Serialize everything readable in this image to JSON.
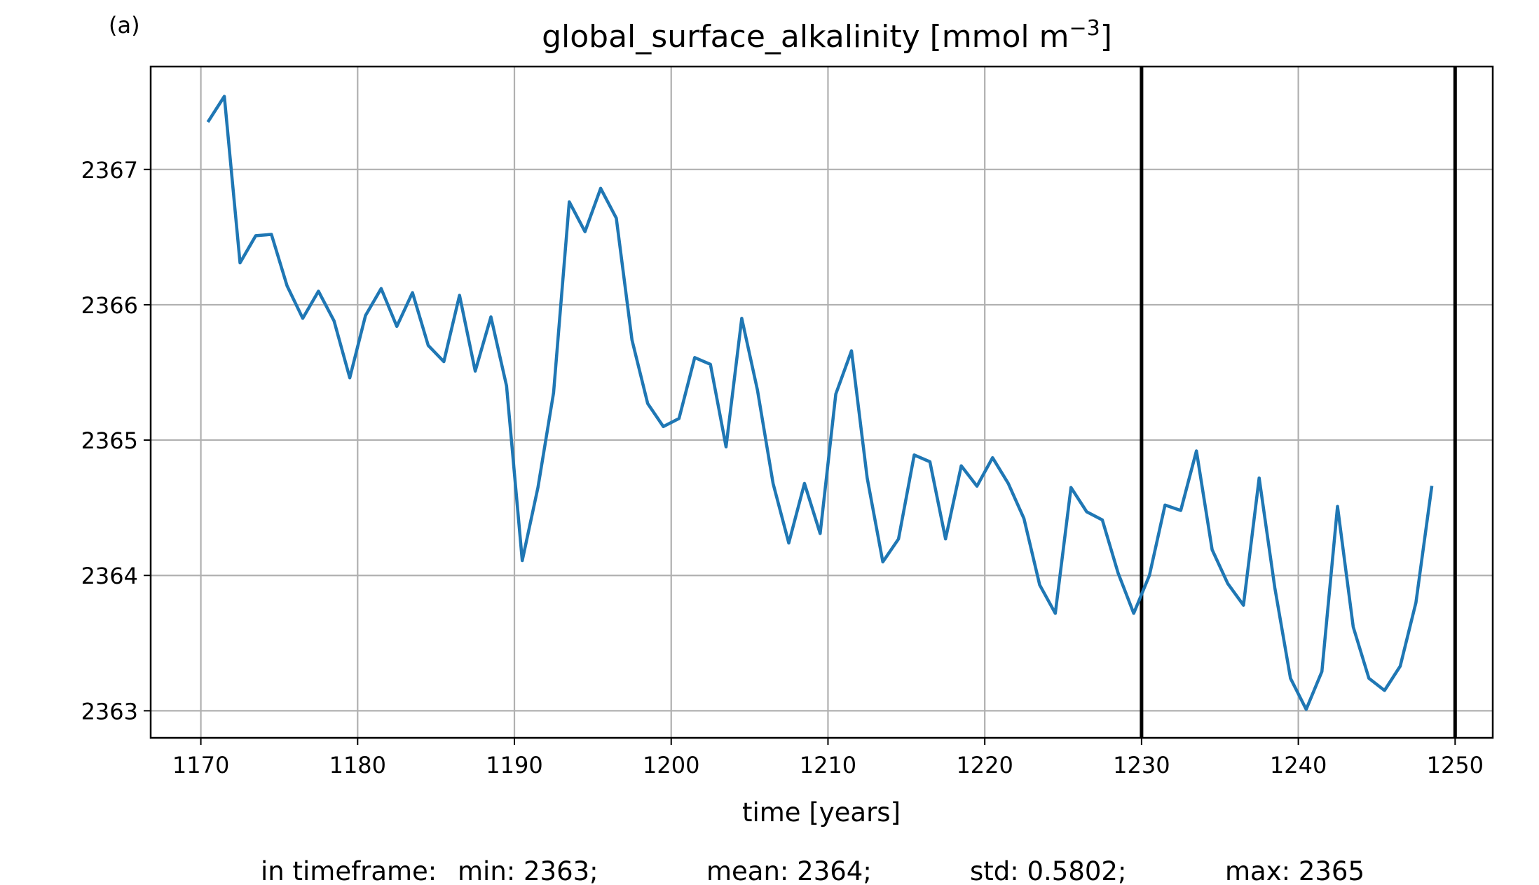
{
  "panel_label": "(a)",
  "chart_data": {
    "type": "line",
    "title": "global_surface_alkalinity [mmol m",
    "title_sup": "−3",
    "title_end": "]",
    "xlabel": "time [years]",
    "ylabel": "",
    "xlim": [
      1166.8,
      1252.4
    ],
    "ylim": [
      2362.8,
      2367.76
    ],
    "xticks": [
      1170,
      1180,
      1190,
      1200,
      1210,
      1220,
      1230,
      1240,
      1250
    ],
    "yticks": [
      2363,
      2364,
      2365,
      2366,
      2367
    ],
    "grid": true,
    "vlines": [
      1230,
      1250
    ],
    "line_color": "#1f77b4",
    "series": [
      {
        "x": [
          1170.5,
          1171.5,
          1172.5,
          1173.5,
          1174.5,
          1175.5,
          1176.5,
          1177.5,
          1178.5,
          1179.5,
          1180.5,
          1181.5,
          1182.5,
          1183.5,
          1184.5,
          1185.5,
          1186.5,
          1187.5,
          1188.5,
          1189.5,
          1190.5,
          1191.5,
          1192.5,
          1193.5,
          1194.5,
          1195.5,
          1196.5,
          1197.5,
          1198.5,
          1199.5,
          1200.5,
          1201.5,
          1202.5,
          1203.5,
          1204.5,
          1205.5,
          1206.5,
          1207.5,
          1208.5,
          1209.5,
          1210.5,
          1211.5,
          1212.5,
          1213.5,
          1214.5,
          1215.5,
          1216.5,
          1217.5,
          1218.5,
          1219.5,
          1220.5,
          1221.5,
          1222.5,
          1223.5,
          1224.5,
          1225.5,
          1226.5,
          1227.5,
          1228.5,
          1229.5,
          1230.5,
          1231.5,
          1232.5,
          1233.5,
          1234.5,
          1235.5,
          1236.5,
          1237.5,
          1238.5,
          1239.5,
          1240.5,
          1241.5,
          1242.5,
          1243.5,
          1244.5,
          1245.5,
          1246.5,
          1247.5,
          1248.5
        ],
        "y": [
          2367.36,
          2367.54,
          2366.31,
          2366.51,
          2366.52,
          2366.14,
          2365.9,
          2366.1,
          2365.88,
          2365.46,
          2365.92,
          2366.12,
          2365.84,
          2366.09,
          2365.7,
          2365.58,
          2366.07,
          2365.51,
          2365.91,
          2365.4,
          2364.11,
          2364.65,
          2365.35,
          2366.76,
          2366.54,
          2366.86,
          2366.64,
          2365.74,
          2365.27,
          2365.1,
          2365.16,
          2365.61,
          2365.56,
          2364.95,
          2365.9,
          2365.37,
          2364.68,
          2364.24,
          2364.68,
          2364.31,
          2365.34,
          2365.66,
          2364.72,
          2364.1,
          2364.27,
          2364.89,
          2364.84,
          2364.27,
          2364.81,
          2364.66,
          2364.87,
          2364.68,
          2364.42,
          2363.93,
          2363.72,
          2364.65,
          2364.47,
          2364.41,
          2364.02,
          2363.72,
          2364.0,
          2364.52,
          2364.48,
          2364.92,
          2364.19,
          2363.94,
          2363.78,
          2364.72,
          2363.91,
          2363.24,
          2363.01,
          2363.29,
          2364.51,
          2363.62,
          2363.24,
          2363.15,
          2363.33,
          2363.8,
          2364.65
        ]
      }
    ]
  },
  "stats": {
    "prefix": "in timeframe:",
    "min": "min: 2363;",
    "mean": "mean: 2364;",
    "std": "std: 0.5802;",
    "max": "max: 2365"
  }
}
